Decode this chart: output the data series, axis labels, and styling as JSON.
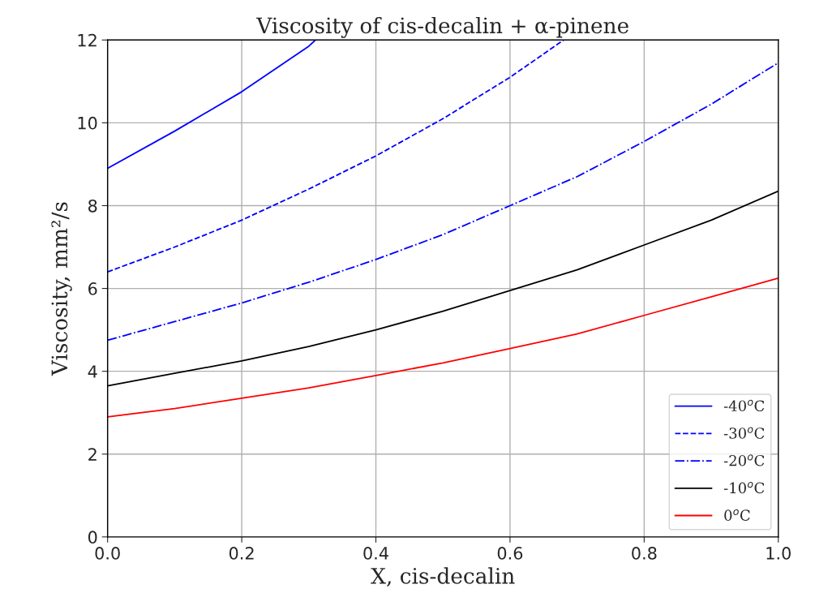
{
  "chart_data": {
    "type": "line",
    "title": "Viscosity of cis-decalin + α-pinene",
    "xlabel": "X, cis-decalin",
    "ylabel": "Viscosity, mm²/s",
    "xlim": [
      0,
      1
    ],
    "ylim": [
      0,
      12
    ],
    "xticks": [
      {
        "value": 0,
        "label": "0.0"
      },
      {
        "value": 0.2,
        "label": "0.2"
      },
      {
        "value": 0.4,
        "label": "0.4"
      },
      {
        "value": 0.6,
        "label": "0.6"
      },
      {
        "value": 0.8,
        "label": "0.8"
      },
      {
        "value": 1,
        "label": "1.0"
      }
    ],
    "yticks": [
      0,
      2,
      4,
      6,
      8,
      10,
      12
    ],
    "grid": true,
    "legend": "bottom right",
    "marker": "none",
    "series": [
      {
        "name": "-40$^{o}$C",
        "color": "#0000ff",
        "line_style": "solid",
        "x": [
          0,
          0.1,
          0.2,
          0.3,
          0.31
        ],
        "values": [
          8.9,
          9.8,
          10.75,
          11.85,
          12.0
        ]
      },
      {
        "name": "-30$^{o}$C",
        "color": "#0000ff",
        "line_style": "dashed",
        "x": [
          0,
          0.1,
          0.2,
          0.3,
          0.4,
          0.5,
          0.6,
          0.68
        ],
        "values": [
          6.4,
          7.0,
          7.65,
          8.4,
          9.2,
          10.1,
          11.1,
          12.0
        ]
      },
      {
        "name": "-20$^{o}$C",
        "color": "#0000ff",
        "line_style": "dashdot",
        "x": [
          0,
          0.1,
          0.2,
          0.3,
          0.4,
          0.5,
          0.6,
          0.7,
          0.8,
          0.9,
          1.0
        ],
        "values": [
          4.75,
          5.2,
          5.65,
          6.15,
          6.7,
          7.3,
          8.0,
          8.7,
          9.55,
          10.45,
          11.45
        ]
      },
      {
        "name": "-10$^{o}$C",
        "color": "#000000",
        "line_style": "solid",
        "x": [
          0,
          0.1,
          0.2,
          0.3,
          0.4,
          0.5,
          0.6,
          0.7,
          0.8,
          0.9,
          1.0
        ],
        "values": [
          3.65,
          3.95,
          4.25,
          4.6,
          5.0,
          5.45,
          5.95,
          6.45,
          7.05,
          7.65,
          8.35
        ]
      },
      {
        "name": "0$^{o}$C",
        "color": "#ff0000",
        "line_style": "solid",
        "x": [
          0,
          0.1,
          0.2,
          0.3,
          0.4,
          0.5,
          0.6,
          0.7,
          0.8,
          0.9,
          1.0
        ],
        "values": [
          2.9,
          3.1,
          3.35,
          3.6,
          3.9,
          4.2,
          4.55,
          4.9,
          5.35,
          5.8,
          6.25
        ]
      }
    ]
  }
}
